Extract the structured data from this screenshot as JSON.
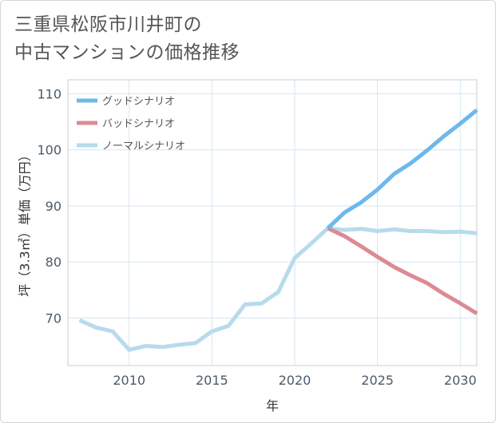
{
  "title_lines": [
    "三重県松阪市川井町の",
    "中古マンションの価格推移"
  ],
  "chart_data": {
    "type": "line",
    "xlabel": "年",
    "ylabel": "坪（3.3㎡）単価（万円）",
    "xlim": [
      2006.3,
      2031
    ],
    "ylim": [
      61.5,
      112.5
    ],
    "x_ticks": [
      2010,
      2015,
      2020,
      2025,
      2030
    ],
    "y_ticks": [
      70,
      80,
      90,
      100,
      110
    ],
    "grid": true,
    "legend_position": "top-left",
    "series": [
      {
        "name": "グッドシナリオ",
        "color": "#6db8ec",
        "x": [
          2022,
          2023,
          2024,
          2025,
          2026,
          2027,
          2028,
          2029,
          2030,
          2031
        ],
        "y": [
          86.0,
          88.8,
          90.6,
          92.9,
          95.7,
          97.6,
          99.9,
          102.4,
          104.7,
          107.1
        ]
      },
      {
        "name": "バッドシナリオ",
        "color": "#dc8a94",
        "x": [
          2022,
          2023,
          2024,
          2025,
          2026,
          2027,
          2028,
          2029,
          2030,
          2031
        ],
        "y": [
          86.0,
          84.6,
          82.8,
          80.9,
          79.1,
          77.6,
          76.2,
          74.3,
          72.6,
          70.8
        ]
      },
      {
        "name": "ノーマルシナリオ",
        "color": "#b7dbec",
        "x": [
          2007,
          2008,
          2009,
          2010,
          2011,
          2012,
          2013,
          2014,
          2015,
          2016,
          2017,
          2018,
          2019,
          2020,
          2021,
          2022,
          2023,
          2024,
          2025,
          2026,
          2027,
          2028,
          2029,
          2030,
          2031
        ],
        "y": [
          69.6,
          68.3,
          67.6,
          64.3,
          65.0,
          64.8,
          65.2,
          65.5,
          67.6,
          68.6,
          72.4,
          72.6,
          74.6,
          80.7,
          83.3,
          86.0,
          85.7,
          85.9,
          85.5,
          85.8,
          85.5,
          85.5,
          85.3,
          85.4,
          85.1
        ]
      }
    ]
  }
}
